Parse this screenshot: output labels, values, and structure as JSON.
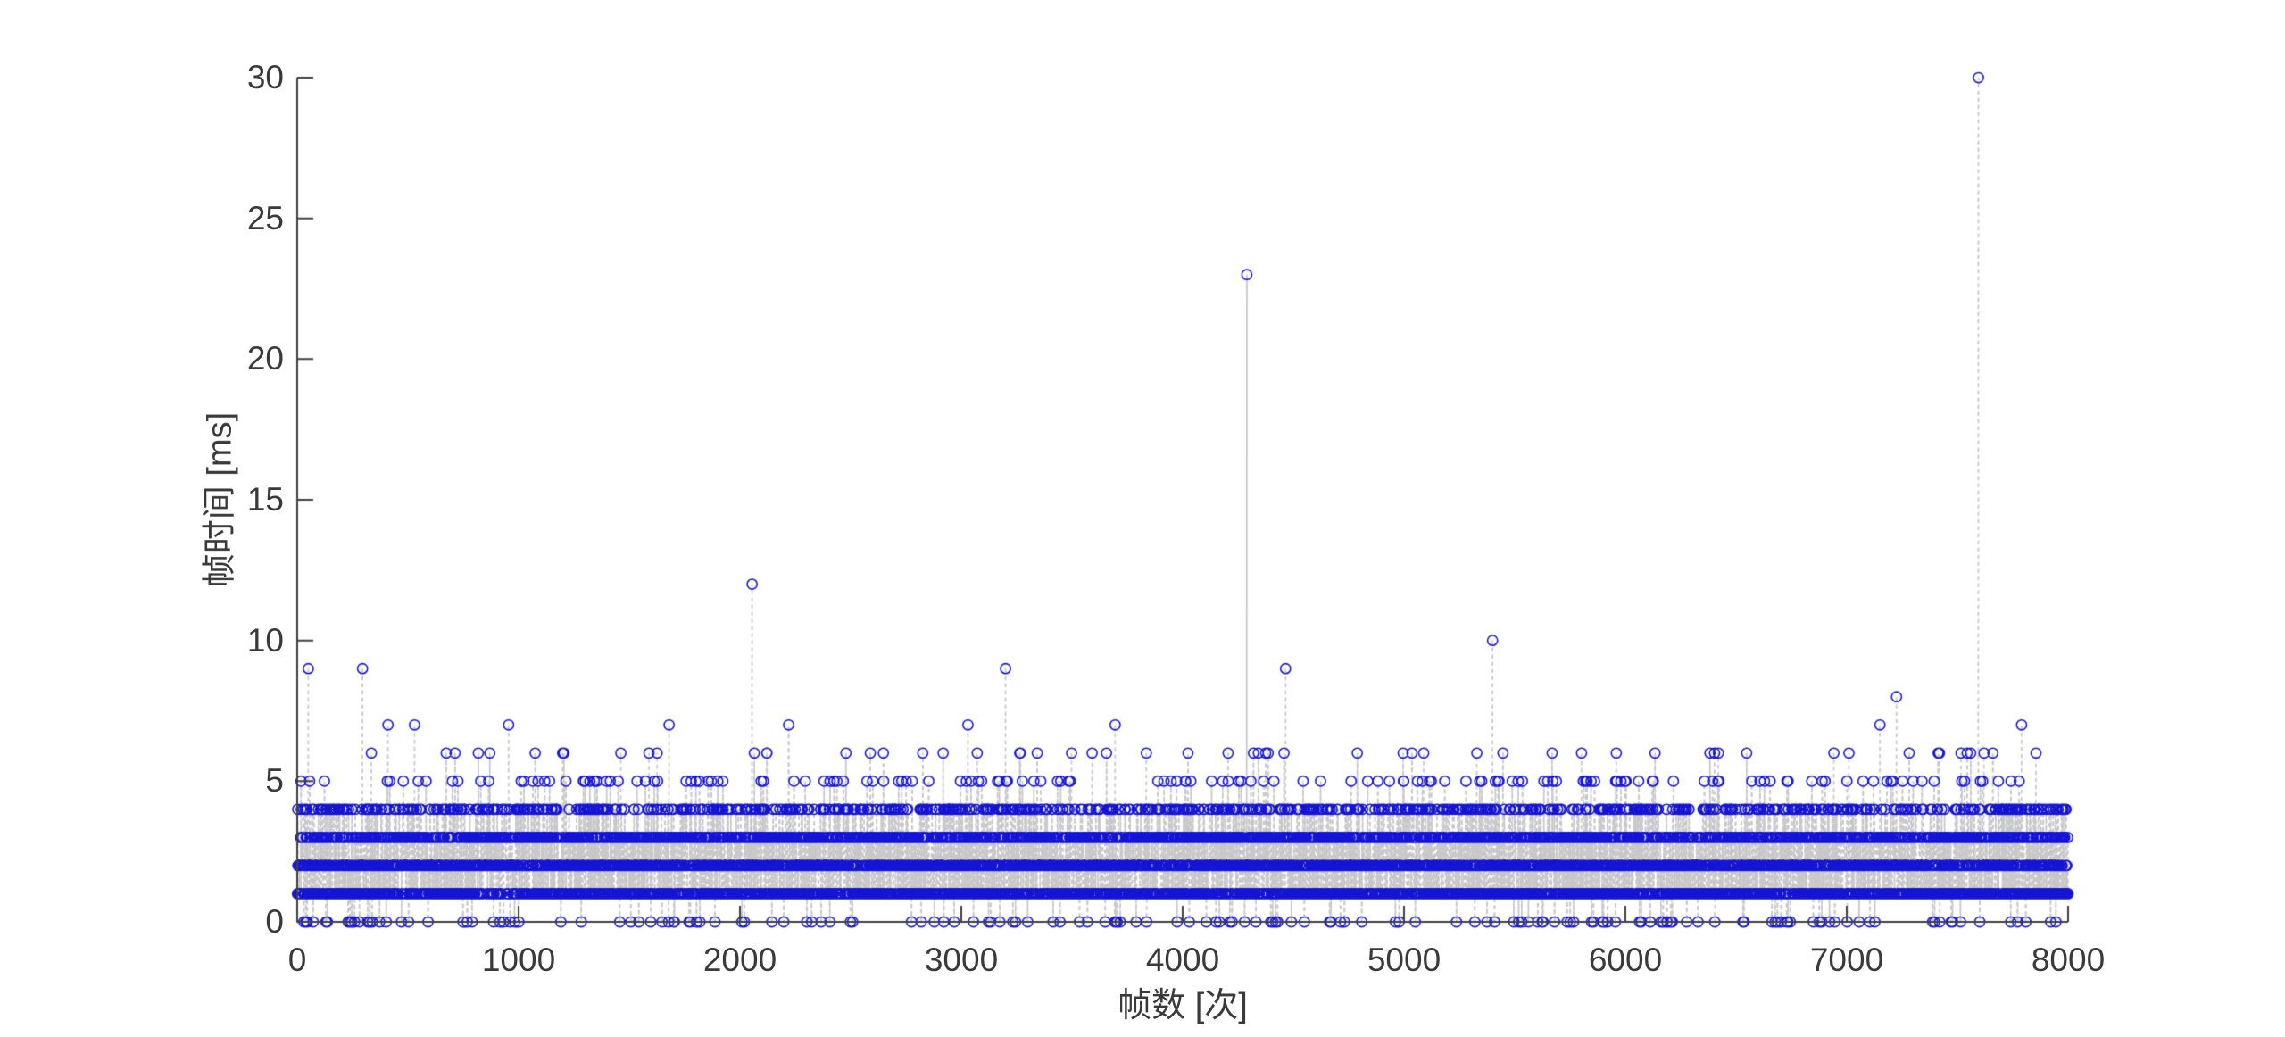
{
  "figure": {
    "background": "#ffffff"
  },
  "chart_data": {
    "type": "stem",
    "title": "",
    "xlabel": "帧数 [次]",
    "ylabel": "帧时间 [ms]",
    "xlim": [
      0,
      8000
    ],
    "ylim": [
      0,
      30
    ],
    "x_ticks": [
      0,
      1000,
      2000,
      3000,
      4000,
      5000,
      6000,
      7000,
      8000
    ],
    "y_ticks": [
      0,
      5,
      10,
      15,
      20,
      25,
      30
    ],
    "n_points": 8000,
    "quantization": "integer milliseconds",
    "value_distribution": {
      "0": 0.021,
      "1": 0.3,
      "2": 0.2945,
      "3": 0.245,
      "4": 0.11,
      "5": 0.022,
      "6": 0.0075
    },
    "outliers": [
      [
        50,
        9
      ],
      [
        295,
        9
      ],
      [
        410,
        7
      ],
      [
        530,
        7
      ],
      [
        955,
        7
      ],
      [
        1680,
        7
      ],
      [
        2055,
        12
      ],
      [
        2220,
        7
      ],
      [
        3030,
        7
      ],
      [
        3200,
        9
      ],
      [
        3695,
        7
      ],
      [
        4290,
        23
      ],
      [
        4465,
        9
      ],
      [
        5400,
        10
      ],
      [
        7010,
        6
      ],
      [
        7150,
        7
      ],
      [
        7225,
        8
      ],
      [
        7282,
        6
      ],
      [
        7560,
        6
      ],
      [
        7595,
        30
      ],
      [
        7620,
        6
      ],
      [
        7660,
        6
      ],
      [
        7790,
        7
      ],
      [
        7855,
        6
      ]
    ],
    "marker_color": "#1414d6",
    "line_color": "#c8c8c8",
    "axis_color": "#404040",
    "tick_label_color": "#3a3a3a",
    "grid": false,
    "legend": null,
    "seed": 123456789
  }
}
